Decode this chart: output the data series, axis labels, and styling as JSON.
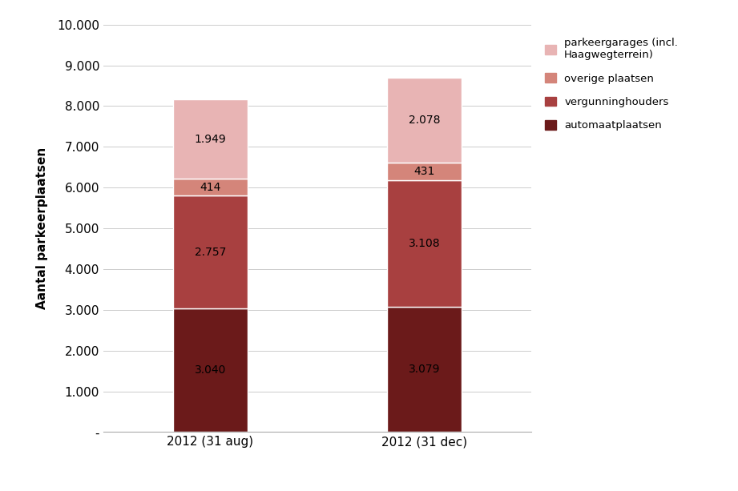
{
  "categories": [
    "2012 (31 aug)",
    "2012 (31 dec)"
  ],
  "series": {
    "automaatplaatsen": [
      3040,
      3079
    ],
    "vergunninghouders": [
      2757,
      3108
    ],
    "overige_plaatsen": [
      414,
      431
    ],
    "parkeergarages": [
      1949,
      2078
    ]
  },
  "labels": {
    "automaatplaatsen": [
      "3.040",
      "3.079"
    ],
    "vergunninghouders": [
      "2.757",
      "3.108"
    ],
    "overige_plaatsen": [
      "414",
      "431"
    ],
    "parkeergarages": [
      "1.949",
      "2.078"
    ]
  },
  "colors": {
    "automaatplaatsen": "#6b1a1a",
    "vergunninghouders": "#a84040",
    "overige_plaatsen": "#d4857a",
    "parkeergarages": "#e8b4b4"
  },
  "legend_labels": [
    "parkeergarages (incl.\nHaagwegterrein)",
    "overige plaatsen",
    "vergunninghouders",
    "automaatplaatsen"
  ],
  "legend_colors": [
    "#e8b4b4",
    "#d4857a",
    "#a84040",
    "#6b1a1a"
  ],
  "ylabel": "Aantal parkeerplaatsen",
  "ylim": [
    0,
    10000
  ],
  "yticks": [
    0,
    1000,
    2000,
    3000,
    4000,
    5000,
    6000,
    7000,
    8000,
    9000,
    10000
  ],
  "ytick_labels": [
    "-",
    "1.000",
    "2.000",
    "3.000",
    "4.000",
    "5.000",
    "6.000",
    "7.000",
    "8.000",
    "9.000",
    "10.000"
  ],
  "bar_width": 0.35,
  "background_color": "#ffffff",
  "bar_positions": [
    0.25,
    0.75
  ]
}
